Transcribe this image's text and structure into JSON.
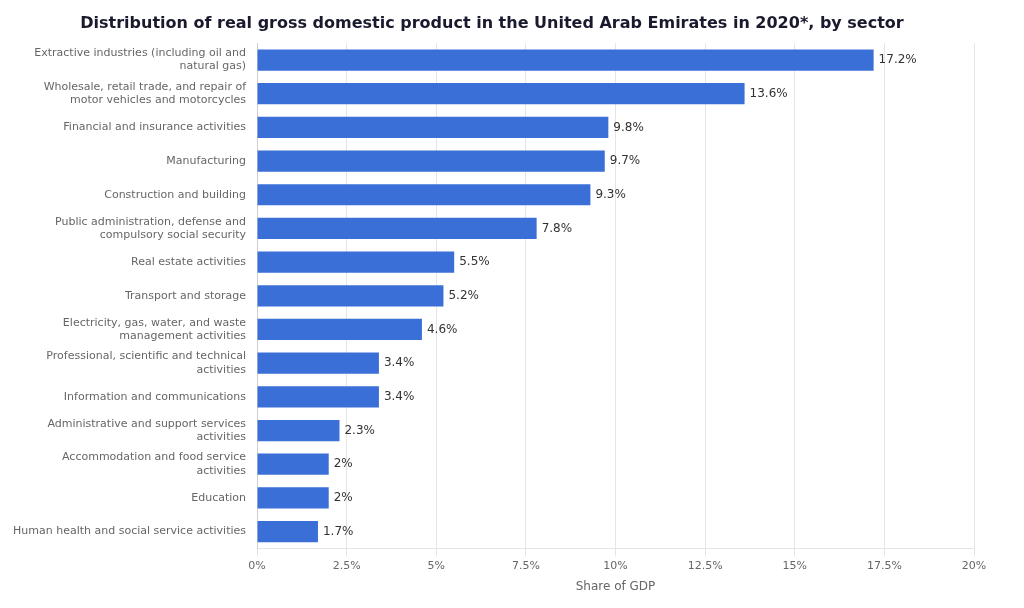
{
  "chart_data": {
    "type": "bar",
    "orientation": "horizontal",
    "title": "Distribution of real gross domestic product in the United Arab Emirates in 2020*, by sector",
    "xlabel": "Share of GDP",
    "categories": [
      "Extractive industries (including oil and\nnatural gas)",
      "Wholesale, retail trade, and repair of\nmotor vehicles and motorcycles",
      "Financial and insurance activities",
      "Manufacturing",
      "Construction and building",
      "Public administration, defense and\ncompulsory social security",
      "Real estate activities",
      "Transport and storage",
      "Electricity, gas, water, and waste\nmanagement activities",
      "Professional, scientific and technical\nactivities",
      "Information and communications",
      "Administrative and support services\nactivities",
      "Accommodation and food service\nactivities",
      "Education",
      "Human health and social service activities"
    ],
    "values": [
      17.2,
      13.6,
      9.8,
      9.7,
      9.3,
      7.8,
      5.5,
      5.2,
      4.6,
      3.4,
      3.4,
      2.3,
      2.0,
      2.0,
      1.7
    ],
    "value_labels": [
      "17.2%",
      "13.6%",
      "9.8%",
      "9.7%",
      "9.3%",
      "7.8%",
      "5.5%",
      "5.2%",
      "4.6%",
      "3.4%",
      "3.4%",
      "2.3%",
      "2%",
      "2%",
      "1.7%"
    ],
    "data_labels": true,
    "color": "#3a6fd8",
    "xlim": [
      0,
      20
    ],
    "xticks": [
      {
        "value": 0,
        "label": "0%"
      },
      {
        "value": 2.5,
        "label": "2.5%"
      },
      {
        "value": 5,
        "label": "5%"
      },
      {
        "value": 7.5,
        "label": "7.5%"
      },
      {
        "value": 10,
        "label": "10%"
      },
      {
        "value": 12.5,
        "label": "12.5%"
      },
      {
        "value": 15,
        "label": "15%"
      },
      {
        "value": 17.5,
        "label": "17.5%"
      },
      {
        "value": 20,
        "label": "20%"
      }
    ],
    "grid": true
  }
}
